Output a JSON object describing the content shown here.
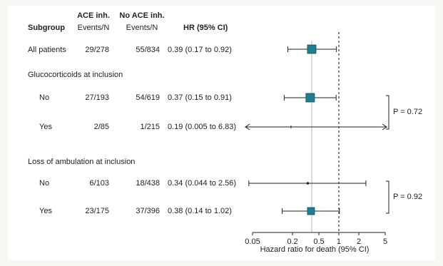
{
  "chart_data": {
    "type": "forest",
    "headers": {
      "group_ace": "ACE inh.",
      "group_noace": "No ACE inh.",
      "subgroup": "Subgroup",
      "events_ace": "Events/N",
      "events_noace": "Events/N",
      "hr": "HR (95% CI)"
    },
    "sections": [
      {
        "title": "Glucocorticoids at inclusion",
        "p_value": "P = 0.72"
      },
      {
        "title": "Loss of ambulation at inclusion",
        "p_value": "P = 0.92"
      }
    ],
    "rows": [
      {
        "label": "All patients",
        "ace": "29/278",
        "noace": "55/834",
        "hr_text": "0.39 (0.17 to 0.92)",
        "hr": 0.39,
        "lo": 0.17,
        "hi": 0.92,
        "marker": "large"
      },
      {
        "label": "No",
        "ace": "27/193",
        "noace": "54/619",
        "hr_text": "0.37 (0.15 to 0.91)",
        "hr": 0.37,
        "lo": 0.15,
        "hi": 0.91,
        "marker": "large"
      },
      {
        "label": "Yes",
        "ace": "2/85",
        "noace": "1/215",
        "hr_text": "0.19 (0.005 to 6.83)",
        "hr": 0.19,
        "lo": 0.005,
        "hi": 6.83,
        "marker": "tiny",
        "arrows": true
      },
      {
        "label": "No",
        "ace": "6/103",
        "noace": "18/438",
        "hr_text": "0.34 (0.044 to 2.56)",
        "hr": 0.34,
        "lo": 0.044,
        "hi": 2.56,
        "marker": "dot"
      },
      {
        "label": "Yes",
        "ace": "23/175",
        "noace": "37/396",
        "hr_text": "0.38 (0.14 to 1.02)",
        "hr": 0.38,
        "lo": 0.14,
        "hi": 1.02,
        "marker": "medium"
      }
    ],
    "x_axis": {
      "scale": "log",
      "ticks": [
        0.05,
        0.2,
        0.5,
        1,
        2,
        5
      ],
      "tick_labels": [
        "0.05",
        "0.2",
        "0.5",
        "1",
        "2",
        "5"
      ],
      "label": "Hazard ratio for death (95% CI)",
      "xlim": [
        0.05,
        5
      ]
    },
    "reference_lines": [
      {
        "value": 1,
        "style": "dashed"
      },
      {
        "value": 0.39,
        "style": "solid"
      }
    ],
    "colors": {
      "marker": "#1d7f93",
      "line": "#222222",
      "overall_line": "#b5b5b5"
    }
  }
}
